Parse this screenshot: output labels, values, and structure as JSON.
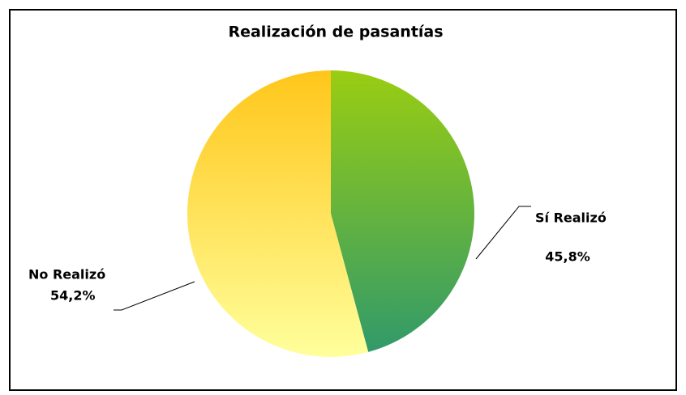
{
  "chart_data": {
    "type": "pie",
    "title": "Realización de pasantías",
    "categories": [
      "Sí Realizó",
      "No Realizó"
    ],
    "values": [
      45.8,
      54.2
    ],
    "value_labels": [
      "45,8%",
      "54,2%"
    ],
    "colors": [
      [
        "#9acd12",
        "#319a6a"
      ],
      [
        "#ffc61a",
        "#ffff9c"
      ]
    ]
  }
}
